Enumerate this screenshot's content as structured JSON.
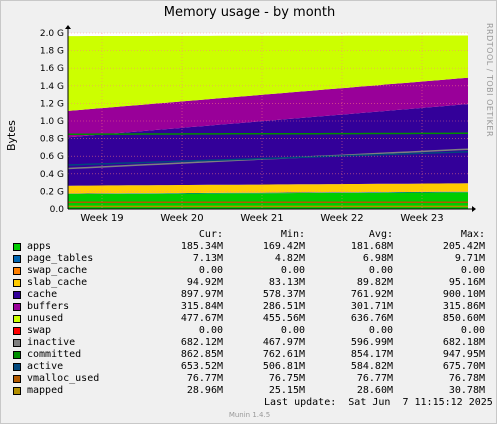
{
  "side_label": "RRDTOOL / TOBI OETIKER",
  "chart_data": {
    "type": "area",
    "title": "Memory usage - by month",
    "ylabel": "Bytes",
    "xlabel": "",
    "ylim": [
      0,
      2.0
    ],
    "y_ticks": [
      "0.0",
      "0.2 G",
      "0.4 G",
      "0.6 G",
      "0.8 G",
      "1.0 G",
      "1.2 G",
      "1.4 G",
      "1.6 G",
      "1.8 G",
      "2.0 G"
    ],
    "x_ticks": [
      "Week 19",
      "Week 20",
      "Week 21",
      "Week 22",
      "Week 23"
    ],
    "grid": true,
    "stacked_series_gb_start_end": [
      {
        "name": "apps",
        "values": [
          0.17,
          0.19
        ],
        "color": "#00cc00"
      },
      {
        "name": "page_tables",
        "values": [
          0.005,
          0.007
        ],
        "color": "#0066b3"
      },
      {
        "name": "swap_cache",
        "values": [
          0.0,
          0.0
        ],
        "color": "#ff8000"
      },
      {
        "name": "slab_cache",
        "values": [
          0.09,
          0.095
        ],
        "color": "#ffcc00"
      },
      {
        "name": "cache",
        "values": [
          0.55,
          0.9
        ],
        "color": "#330099"
      },
      {
        "name": "buffers",
        "values": [
          0.3,
          0.3
        ],
        "color": "#990099"
      },
      {
        "name": "unused",
        "values": [
          0.85,
          0.48
        ],
        "color": "#ccff00"
      }
    ],
    "line_series_gb_start_end": [
      {
        "name": "inactive",
        "values": [
          0.46,
          0.68
        ],
        "color": "#808080"
      },
      {
        "name": "committed",
        "values": [
          0.85,
          0.86
        ],
        "color": "#008f00"
      },
      {
        "name": "active",
        "values": [
          0.5,
          0.65
        ],
        "color": "#00487d"
      },
      {
        "name": "vmalloc_used",
        "values": [
          0.077,
          0.077
        ],
        "color": "#b35a00"
      },
      {
        "name": "mapped",
        "values": [
          0.029,
          0.029
        ],
        "color": "#b38f00"
      }
    ]
  },
  "legend": {
    "headers": {
      "cur": "Cur:",
      "min": "Min:",
      "avg": "Avg:",
      "max": "Max:"
    },
    "rows": [
      {
        "name": "apps",
        "color": "#00cc00",
        "cur": "185.34M",
        "min": "169.42M",
        "avg": "181.68M",
        "max": "205.42M"
      },
      {
        "name": "page_tables",
        "color": "#0066b3",
        "cur": "7.13M",
        "min": "4.82M",
        "avg": "6.98M",
        "max": "9.71M"
      },
      {
        "name": "swap_cache",
        "color": "#ff8000",
        "cur": "0.00",
        "min": "0.00",
        "avg": "0.00",
        "max": "0.00"
      },
      {
        "name": "slab_cache",
        "color": "#ffcc00",
        "cur": "94.92M",
        "min": "83.13M",
        "avg": "89.82M",
        "max": "95.16M"
      },
      {
        "name": "cache",
        "color": "#330099",
        "cur": "897.97M",
        "min": "578.37M",
        "avg": "761.92M",
        "max": "900.10M"
      },
      {
        "name": "buffers",
        "color": "#990099",
        "cur": "315.84M",
        "min": "286.51M",
        "avg": "301.71M",
        "max": "315.86M"
      },
      {
        "name": "unused",
        "color": "#ccff00",
        "cur": "477.67M",
        "min": "455.56M",
        "avg": "636.76M",
        "max": "850.60M"
      },
      {
        "name": "swap",
        "color": "#ff0000",
        "cur": "0.00",
        "min": "0.00",
        "avg": "0.00",
        "max": "0.00"
      },
      {
        "name": "inactive",
        "color": "#808080",
        "cur": "682.12M",
        "min": "467.97M",
        "avg": "596.99M",
        "max": "682.18M"
      },
      {
        "name": "committed",
        "color": "#008f00",
        "cur": "862.85M",
        "min": "762.61M",
        "avg": "854.17M",
        "max": "947.95M"
      },
      {
        "name": "active",
        "color": "#00487d",
        "cur": "653.52M",
        "min": "506.81M",
        "avg": "584.82M",
        "max": "675.70M"
      },
      {
        "name": "vmalloc_used",
        "color": "#b35a00",
        "cur": "76.77M",
        "min": "76.75M",
        "avg": "76.77M",
        "max": "76.78M"
      },
      {
        "name": "mapped",
        "color": "#b38f00",
        "cur": "28.96M",
        "min": "25.15M",
        "avg": "28.60M",
        "max": "30.78M"
      }
    ]
  },
  "footer": {
    "last_update": "Last update:  Sat Jun  7 11:15:12 2025",
    "munin_version": "Munin 1.4.5"
  }
}
